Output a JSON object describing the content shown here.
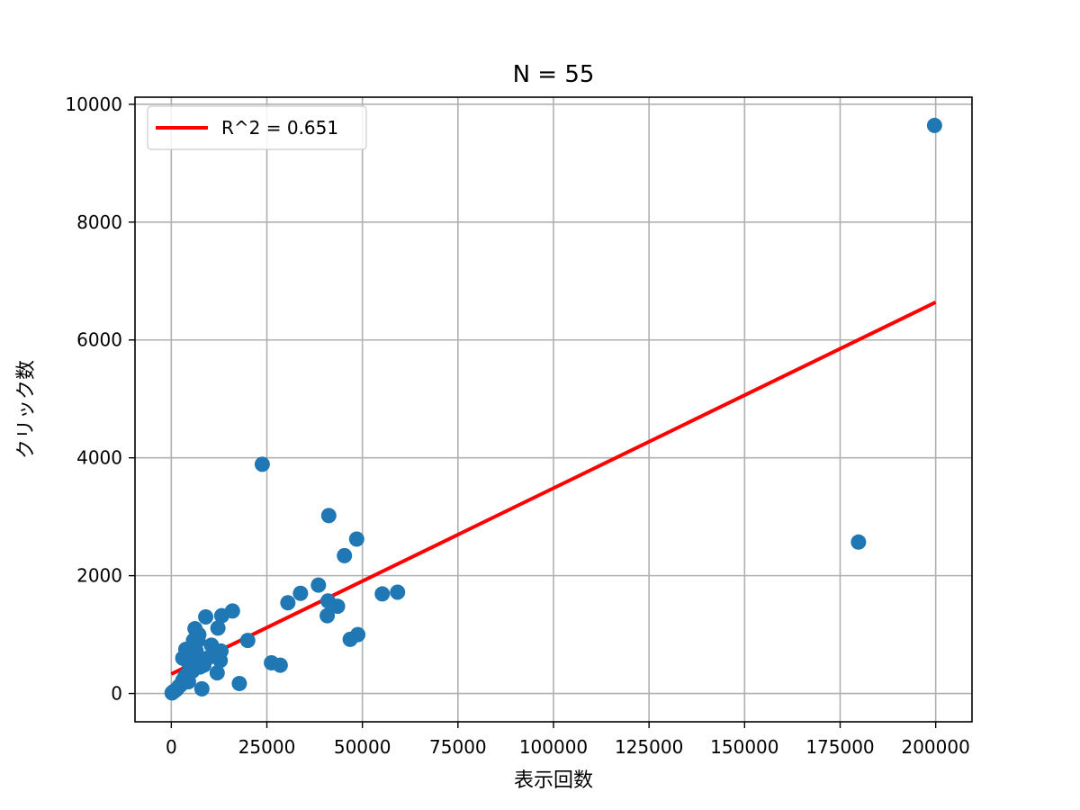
{
  "chart_data": {
    "type": "scatter",
    "title": "N = 55",
    "xlabel": "表示回数",
    "ylabel": "クリック数",
    "xlim": [
      -9500,
      209500
    ],
    "ylim": [
      -480,
      10120
    ],
    "xticks": [
      0,
      25000,
      50000,
      75000,
      100000,
      125000,
      150000,
      175000,
      200000
    ],
    "xtick_labels": [
      "0",
      "25000",
      "50000",
      "75000",
      "100000",
      "125000",
      "150000",
      "175000",
      "200000"
    ],
    "yticks": [
      0,
      2000,
      4000,
      6000,
      8000,
      10000
    ],
    "ytick_labels": [
      "0",
      "2000",
      "4000",
      "6000",
      "8000",
      "10000"
    ],
    "grid": true,
    "legend": {
      "placement": "top-left",
      "entries": [
        {
          "label": "R^2 = 0.651",
          "color": "#ff0000",
          "kind": "line"
        }
      ]
    },
    "series": [
      {
        "kind": "scatter",
        "color": "#1f77b4",
        "points": [
          [
            200,
            10
          ],
          [
            500,
            30
          ],
          [
            1000,
            50
          ],
          [
            1500,
            80
          ],
          [
            2000,
            120
          ],
          [
            2500,
            150
          ],
          [
            3000,
            220
          ],
          [
            3500,
            280
          ],
          [
            3800,
            750
          ],
          [
            4000,
            320
          ],
          [
            4200,
            550
          ],
          [
            4500,
            200
          ],
          [
            5000,
            420
          ],
          [
            5200,
            650
          ],
          [
            5500,
            380
          ],
          [
            6000,
            480
          ],
          [
            6200,
            1100
          ],
          [
            6500,
            720
          ],
          [
            7000,
            900
          ],
          [
            7200,
            1000
          ],
          [
            7500,
            450
          ],
          [
            7800,
            570
          ],
          [
            8000,
            80
          ],
          [
            8500,
            480
          ],
          [
            9000,
            1300
          ],
          [
            9500,
            600
          ],
          [
            12000,
            350
          ],
          [
            12200,
            1110
          ],
          [
            12800,
            560
          ],
          [
            13000,
            720
          ],
          [
            13200,
            1320
          ],
          [
            17800,
            170
          ],
          [
            23800,
            3890
          ],
          [
            26200,
            520
          ],
          [
            28500,
            480
          ],
          [
            30500,
            1540
          ],
          [
            33800,
            1700
          ],
          [
            38500,
            1840
          ],
          [
            40800,
            1320
          ],
          [
            41000,
            1570
          ],
          [
            41200,
            3020
          ],
          [
            43500,
            1480
          ],
          [
            45300,
            2340
          ],
          [
            46800,
            920
          ],
          [
            48500,
            2620
          ],
          [
            48800,
            1000
          ],
          [
            55200,
            1690
          ],
          [
            59200,
            1720
          ],
          [
            179800,
            2570
          ],
          [
            199700,
            9640
          ],
          [
            16000,
            1400
          ],
          [
            20000,
            900
          ],
          [
            3000,
            600
          ],
          [
            5800,
            900
          ],
          [
            10500,
            820
          ]
        ]
      },
      {
        "kind": "line",
        "name": "R^2 = 0.651",
        "color": "#ff0000",
        "x": [
          0,
          200000
        ],
        "y": [
          330,
          6640
        ]
      }
    ]
  }
}
